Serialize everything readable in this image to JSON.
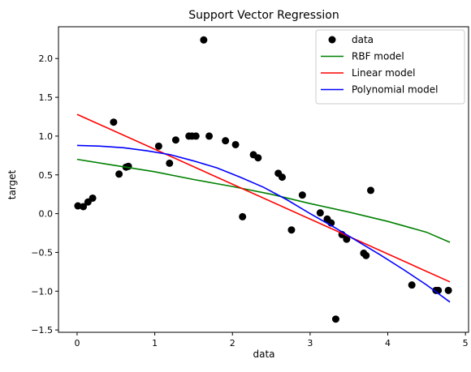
{
  "chart_data": {
    "type": "scatter",
    "title": "Support Vector Regression",
    "xlabel": "data",
    "ylabel": "target",
    "xlim": [
      -0.24,
      5.04
    ],
    "ylim": [
      -1.53,
      2.41
    ],
    "xticks": [
      0,
      1,
      2,
      3,
      4,
      5
    ],
    "yticks": [
      -1.5,
      -1.0,
      -0.5,
      0.0,
      0.5,
      1.0,
      1.5,
      2.0
    ],
    "grid": false,
    "legend_position": "top-right",
    "scatter": {
      "name": "data",
      "color": "#000000",
      "points": [
        [
          0.01,
          0.1
        ],
        [
          0.08,
          0.09
        ],
        [
          0.14,
          0.15
        ],
        [
          0.2,
          0.2
        ],
        [
          0.47,
          1.18
        ],
        [
          0.54,
          0.51
        ],
        [
          0.63,
          0.6
        ],
        [
          0.66,
          0.61
        ],
        [
          1.05,
          0.87
        ],
        [
          1.19,
          0.65
        ],
        [
          1.27,
          0.95
        ],
        [
          1.44,
          1.0
        ],
        [
          1.48,
          1.0
        ],
        [
          1.53,
          1.0
        ],
        [
          1.63,
          2.24
        ],
        [
          1.7,
          1.0
        ],
        [
          1.91,
          0.94
        ],
        [
          2.04,
          0.89
        ],
        [
          2.13,
          -0.04
        ],
        [
          2.27,
          0.76
        ],
        [
          2.33,
          0.72
        ],
        [
          2.59,
          0.52
        ],
        [
          2.64,
          0.47
        ],
        [
          2.76,
          -0.21
        ],
        [
          2.9,
          0.24
        ],
        [
          3.13,
          0.01
        ],
        [
          3.22,
          -0.07
        ],
        [
          3.27,
          -0.12
        ],
        [
          3.33,
          -1.36
        ],
        [
          3.41,
          -0.27
        ],
        [
          3.47,
          -0.33
        ],
        [
          3.69,
          -0.51
        ],
        [
          3.72,
          -0.54
        ],
        [
          3.78,
          0.3
        ],
        [
          4.31,
          -0.92
        ],
        [
          4.62,
          -0.99
        ],
        [
          4.65,
          -0.99
        ],
        [
          4.78,
          -0.99
        ]
      ]
    },
    "series": [
      {
        "name": "RBF model",
        "color": "#008000",
        "x": [
          0.0,
          0.5,
          1.0,
          1.5,
          2.0,
          2.5,
          3.0,
          3.5,
          4.0,
          4.5,
          4.8
        ],
        "y": [
          0.7,
          0.62,
          0.54,
          0.44,
          0.35,
          0.25,
          0.13,
          0.02,
          -0.1,
          -0.24,
          -0.37
        ]
      },
      {
        "name": "Linear model",
        "color": "#ff0000",
        "x": [
          0.0,
          4.8
        ],
        "y": [
          1.28,
          -0.88
        ]
      },
      {
        "name": "Polynomial model",
        "color": "#0000ff",
        "x": [
          0.0,
          0.3,
          0.6,
          0.9,
          1.2,
          1.5,
          1.8,
          2.1,
          2.4,
          2.7,
          3.0,
          3.3,
          3.6,
          3.9,
          4.2,
          4.5,
          4.8
        ],
        "y": [
          0.88,
          0.87,
          0.85,
          0.81,
          0.76,
          0.68,
          0.59,
          0.47,
          0.34,
          0.18,
          0.0,
          -0.17,
          -0.35,
          -0.53,
          -0.72,
          -0.92,
          -1.14
        ]
      }
    ]
  }
}
